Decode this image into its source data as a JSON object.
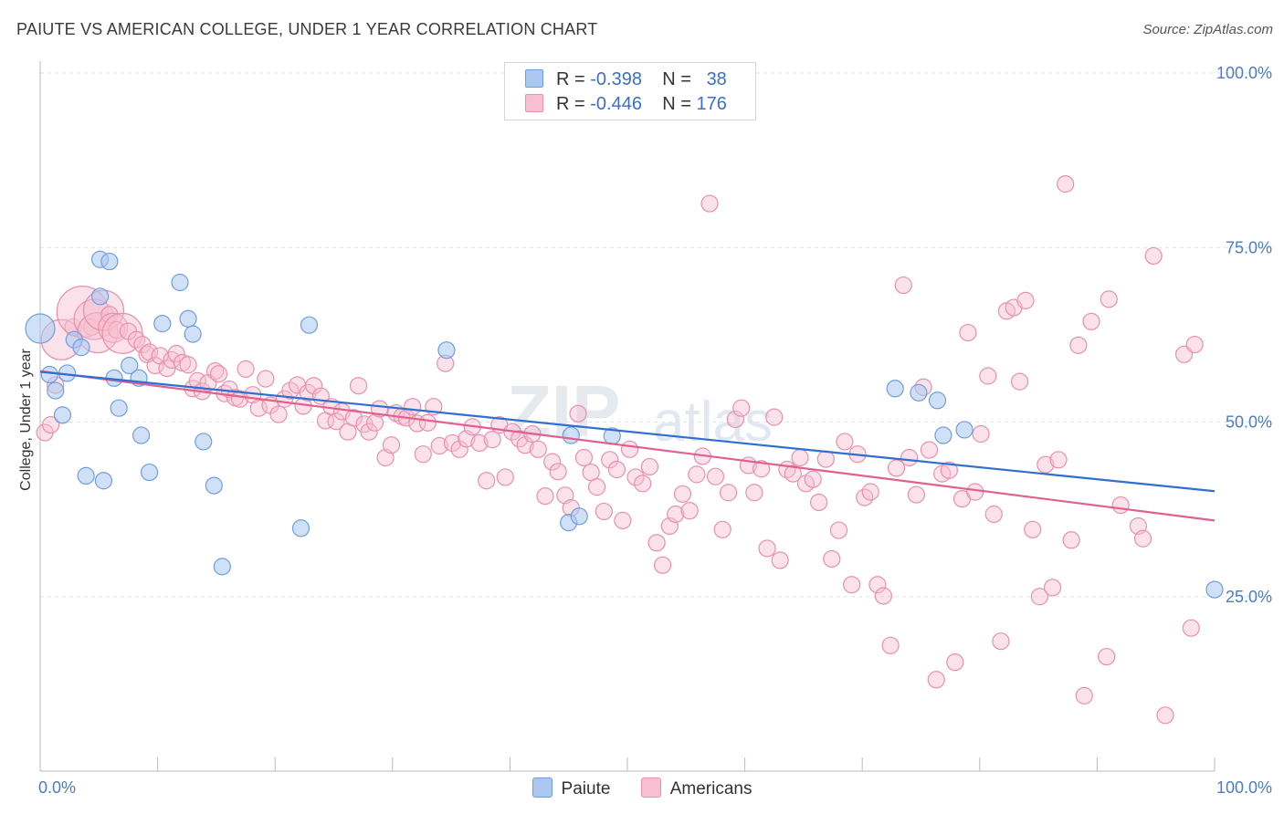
{
  "title": "PAIUTE VS AMERICAN COLLEGE, UNDER 1 YEAR CORRELATION CHART",
  "source": "Source: ZipAtlas.com",
  "watermark": {
    "zip": "ZIP",
    "atlas": "atlas"
  },
  "legend": {
    "rows": [
      {
        "r_label": "R =",
        "r_value": "-0.398",
        "n_label": "N =",
        "n_value": "38",
        "color": "#aac8f0",
        "border": "#6f9ee0"
      },
      {
        "r_label": "R =",
        "r_value": "-0.446",
        "n_label": "N =",
        "n_value": "176",
        "color": "#f7bfd0",
        "border": "#e890ad"
      }
    ]
  },
  "bottom_legend": [
    {
      "label": "Paiute",
      "color": "#aac8f0",
      "border": "#6f9ee0"
    },
    {
      "label": "Americans",
      "color": "#f7bfd0",
      "border": "#e890ad"
    }
  ],
  "chart_data": {
    "type": "scatter",
    "title": "PAIUTE VS AMERICAN COLLEGE, UNDER 1 YEAR CORRELATION CHART",
    "xlabel": "",
    "ylabel": "College, Under 1 year",
    "xlim": [
      0,
      100
    ],
    "ylim": [
      0,
      100
    ],
    "x_tick_labels": [
      "0.0%",
      "100.0%"
    ],
    "y_tick_labels": [
      "25.0%",
      "50.0%",
      "75.0%",
      "100.0%"
    ],
    "y_ticks": [
      25,
      50,
      75,
      100
    ],
    "grid": true,
    "legend_position": "top-center",
    "colors": {
      "paiute_fill": "#aac8f0",
      "paiute_stroke": "#6f9ee0",
      "paiute_line": "#2f6fd0",
      "americans_fill": "#f7bfd0",
      "americans_stroke": "#e890ad",
      "americans_line": "#e0608f"
    },
    "series": [
      {
        "name": "Paiute",
        "trend": {
          "x0": 0,
          "y0": 57.2,
          "x1": 100,
          "y1": 40.1
        },
        "points": [
          [
            0.0,
            63.4,
            1
          ],
          [
            0.8,
            56.8,
            0
          ],
          [
            1.3,
            54.5,
            0
          ],
          [
            1.9,
            51.0,
            0
          ],
          [
            2.3,
            57.0,
            0
          ],
          [
            2.9,
            61.8,
            0
          ],
          [
            3.5,
            60.7,
            0
          ],
          [
            3.9,
            42.3,
            0
          ],
          [
            5.1,
            68.0,
            0
          ],
          [
            5.1,
            73.3,
            0
          ],
          [
            5.4,
            41.6,
            0
          ],
          [
            5.9,
            73.0,
            0
          ],
          [
            6.3,
            56.3,
            0
          ],
          [
            6.7,
            52.0,
            0
          ],
          [
            7.6,
            58.1,
            0
          ],
          [
            8.4,
            56.3,
            0
          ],
          [
            8.6,
            48.1,
            0
          ],
          [
            9.3,
            42.8,
            0
          ],
          [
            10.4,
            64.1,
            0
          ],
          [
            11.9,
            70.0,
            0
          ],
          [
            12.6,
            64.8,
            0
          ],
          [
            13.0,
            62.6,
            0
          ],
          [
            13.9,
            47.2,
            0
          ],
          [
            14.8,
            40.9,
            0
          ],
          [
            15.5,
            29.3,
            0
          ],
          [
            22.2,
            34.8,
            0
          ],
          [
            22.9,
            63.9,
            0
          ],
          [
            34.6,
            60.3,
            0
          ],
          [
            45.0,
            35.6,
            0
          ],
          [
            45.2,
            48.1,
            0
          ],
          [
            45.9,
            36.5,
            0
          ],
          [
            48.7,
            48.0,
            0
          ],
          [
            72.8,
            54.8,
            0
          ],
          [
            74.8,
            54.2,
            0
          ],
          [
            76.4,
            53.1,
            0
          ],
          [
            76.9,
            48.1,
            0
          ],
          [
            78.7,
            48.9,
            0
          ],
          [
            100.0,
            26.0,
            0
          ]
        ]
      },
      {
        "name": "Americans",
        "trend": {
          "x0": 0,
          "y0": 57.3,
          "x1": 100,
          "y1": 35.9
        },
        "points": [
          [
            0.4,
            48.5,
            0
          ],
          [
            0.9,
            49.6,
            0
          ],
          [
            1.3,
            55.3,
            0
          ],
          [
            1.8,
            61.8,
            2
          ],
          [
            2.8,
            63.6,
            0
          ],
          [
            3.6,
            65.8,
            3
          ],
          [
            4.4,
            63.6,
            0
          ],
          [
            4.6,
            64.7,
            2
          ],
          [
            4.9,
            62.8,
            2
          ],
          [
            5.4,
            66.0,
            2
          ],
          [
            5.9,
            65.4,
            0
          ],
          [
            6.2,
            63.5,
            1
          ],
          [
            6.5,
            63.2,
            0
          ],
          [
            7.0,
            62.7,
            2
          ],
          [
            7.5,
            63.0,
            0
          ],
          [
            8.2,
            61.8,
            0
          ],
          [
            8.7,
            61.1,
            0
          ],
          [
            9.1,
            59.7,
            0
          ],
          [
            9.3,
            60.0,
            0
          ],
          [
            9.8,
            58.1,
            0
          ],
          [
            10.2,
            59.5,
            0
          ],
          [
            10.8,
            57.7,
            0
          ],
          [
            11.2,
            58.9,
            0
          ],
          [
            11.6,
            59.8,
            0
          ],
          [
            12.1,
            58.5,
            0
          ],
          [
            12.6,
            58.2,
            0
          ],
          [
            13.0,
            54.8,
            0
          ],
          [
            13.4,
            55.9,
            0
          ],
          [
            13.8,
            54.4,
            0
          ],
          [
            14.3,
            55.6,
            0
          ],
          [
            14.9,
            57.3,
            0
          ],
          [
            15.2,
            56.9,
            0
          ],
          [
            15.7,
            54.1,
            0
          ],
          [
            16.1,
            54.7,
            0
          ],
          [
            16.6,
            53.5,
            0
          ],
          [
            17.0,
            53.3,
            0
          ],
          [
            17.5,
            57.6,
            0
          ],
          [
            18.1,
            53.9,
            0
          ],
          [
            18.6,
            52.0,
            0
          ],
          [
            19.2,
            56.2,
            0
          ],
          [
            19.6,
            52.4,
            0
          ],
          [
            20.3,
            51.1,
            0
          ],
          [
            20.8,
            53.3,
            0
          ],
          [
            21.3,
            54.5,
            0
          ],
          [
            21.9,
            55.3,
            0
          ],
          [
            22.4,
            52.3,
            0
          ],
          [
            22.8,
            54.2,
            0
          ],
          [
            23.3,
            55.2,
            0
          ],
          [
            23.9,
            53.7,
            0
          ],
          [
            24.3,
            50.2,
            0
          ],
          [
            24.8,
            52.2,
            0
          ],
          [
            25.2,
            50.1,
            0
          ],
          [
            25.7,
            51.5,
            0
          ],
          [
            26.2,
            48.6,
            0
          ],
          [
            26.7,
            50.6,
            0
          ],
          [
            27.1,
            55.2,
            0
          ],
          [
            27.6,
            49.7,
            0
          ],
          [
            28.0,
            48.6,
            0
          ],
          [
            28.5,
            49.9,
            0
          ],
          [
            28.9,
            51.9,
            0
          ],
          [
            29.4,
            44.9,
            0
          ],
          [
            29.9,
            46.7,
            0
          ],
          [
            30.3,
            51.3,
            0
          ],
          [
            30.8,
            50.8,
            0
          ],
          [
            31.2,
            50.6,
            0
          ],
          [
            31.7,
            52.2,
            0
          ],
          [
            32.1,
            49.8,
            0
          ],
          [
            32.6,
            45.4,
            0
          ],
          [
            33.0,
            49.9,
            0
          ],
          [
            33.5,
            52.2,
            0
          ],
          [
            34.0,
            46.6,
            0
          ],
          [
            34.5,
            58.4,
            0
          ],
          [
            35.1,
            47.0,
            0
          ],
          [
            35.7,
            46.1,
            0
          ],
          [
            36.3,
            47.6,
            0
          ],
          [
            36.8,
            49.3,
            0
          ],
          [
            37.4,
            47.0,
            0
          ],
          [
            38.0,
            41.6,
            0
          ],
          [
            38.5,
            47.5,
            0
          ],
          [
            39.1,
            49.6,
            0
          ],
          [
            39.6,
            42.1,
            0
          ],
          [
            40.2,
            48.6,
            0
          ],
          [
            40.8,
            47.6,
            0
          ],
          [
            41.3,
            46.7,
            0
          ],
          [
            41.9,
            48.3,
            0
          ],
          [
            42.4,
            46.1,
            0
          ],
          [
            43.0,
            39.4,
            0
          ],
          [
            43.6,
            44.3,
            0
          ],
          [
            44.1,
            42.9,
            0
          ],
          [
            44.7,
            39.5,
            0
          ],
          [
            45.2,
            37.7,
            0
          ],
          [
            45.8,
            51.2,
            0
          ],
          [
            46.3,
            44.9,
            0
          ],
          [
            46.9,
            42.8,
            0
          ],
          [
            47.4,
            40.7,
            0
          ],
          [
            48.0,
            37.2,
            0
          ],
          [
            48.5,
            44.6,
            0
          ],
          [
            49.1,
            43.2,
            0
          ],
          [
            49.6,
            35.9,
            0
          ],
          [
            50.2,
            46.1,
            0
          ],
          [
            50.7,
            42.1,
            0
          ],
          [
            51.3,
            41.2,
            0
          ],
          [
            51.9,
            43.6,
            0
          ],
          [
            52.5,
            32.7,
            0
          ],
          [
            53.0,
            29.5,
            0
          ],
          [
            53.6,
            35.1,
            0
          ],
          [
            54.1,
            36.8,
            0
          ],
          [
            54.7,
            39.7,
            0
          ],
          [
            55.3,
            37.3,
            0
          ],
          [
            55.9,
            42.5,
            0
          ],
          [
            56.4,
            45.1,
            0
          ],
          [
            57.0,
            81.3,
            0
          ],
          [
            57.5,
            42.2,
            0
          ],
          [
            58.1,
            34.6,
            0
          ],
          [
            58.6,
            39.9,
            0
          ],
          [
            59.2,
            50.4,
            0
          ],
          [
            59.7,
            52.0,
            0
          ],
          [
            60.3,
            43.8,
            0
          ],
          [
            60.8,
            39.9,
            0
          ],
          [
            61.4,
            43.3,
            0
          ],
          [
            61.9,
            31.9,
            0
          ],
          [
            62.5,
            50.7,
            0
          ],
          [
            63.0,
            30.2,
            0
          ],
          [
            63.6,
            43.2,
            0
          ],
          [
            64.1,
            42.6,
            0
          ],
          [
            64.7,
            44.9,
            0
          ],
          [
            65.2,
            41.2,
            0
          ],
          [
            65.8,
            41.8,
            0
          ],
          [
            66.3,
            38.5,
            0
          ],
          [
            66.9,
            44.7,
            0
          ],
          [
            67.4,
            30.4,
            0
          ],
          [
            68.0,
            34.5,
            0
          ],
          [
            68.5,
            47.2,
            0
          ],
          [
            69.1,
            26.7,
            0
          ],
          [
            69.6,
            45.4,
            0
          ],
          [
            70.2,
            39.2,
            0
          ],
          [
            70.7,
            40.0,
            0
          ],
          [
            71.3,
            26.7,
            0
          ],
          [
            71.8,
            25.1,
            0
          ],
          [
            72.4,
            18.0,
            0
          ],
          [
            72.9,
            43.4,
            0
          ],
          [
            73.5,
            69.6,
            0
          ],
          [
            74.0,
            44.9,
            0
          ],
          [
            74.6,
            39.6,
            0
          ],
          [
            75.2,
            55.0,
            0
          ],
          [
            75.7,
            46.0,
            0
          ],
          [
            76.3,
            13.1,
            0
          ],
          [
            76.8,
            42.6,
            0
          ],
          [
            77.4,
            43.1,
            0
          ],
          [
            77.9,
            15.6,
            0
          ],
          [
            78.5,
            39.0,
            0
          ],
          [
            79.0,
            62.8,
            0
          ],
          [
            79.6,
            40.0,
            0
          ],
          [
            80.1,
            48.3,
            0
          ],
          [
            80.7,
            56.6,
            0
          ],
          [
            81.2,
            36.8,
            0
          ],
          [
            81.8,
            18.6,
            0
          ],
          [
            82.3,
            65.9,
            0
          ],
          [
            82.9,
            66.4,
            0
          ],
          [
            83.4,
            55.8,
            0
          ],
          [
            83.9,
            67.4,
            0
          ],
          [
            84.5,
            34.6,
            0
          ],
          [
            85.1,
            25.0,
            0
          ],
          [
            85.6,
            43.9,
            0
          ],
          [
            86.2,
            26.3,
            0
          ],
          [
            86.7,
            44.6,
            0
          ],
          [
            87.3,
            84.1,
            0
          ],
          [
            87.8,
            33.1,
            0
          ],
          [
            88.4,
            61.0,
            0
          ],
          [
            88.9,
            10.8,
            0
          ],
          [
            89.5,
            64.4,
            0
          ],
          [
            90.8,
            16.4,
            0
          ],
          [
            91.0,
            67.6,
            0
          ],
          [
            92.0,
            38.1,
            0
          ],
          [
            93.5,
            35.1,
            0
          ],
          [
            93.9,
            33.3,
            0
          ],
          [
            94.8,
            73.8,
            0
          ],
          [
            95.8,
            8.0,
            0
          ],
          [
            97.4,
            59.7,
            0
          ],
          [
            98.0,
            20.5,
            0
          ],
          [
            98.3,
            61.1,
            0
          ]
        ]
      }
    ]
  }
}
